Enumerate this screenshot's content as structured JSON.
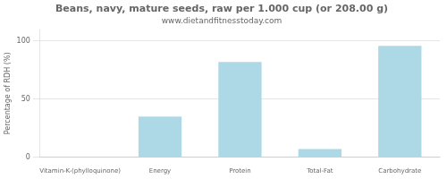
{
  "chart_data": {
    "type": "bar",
    "title": "Beans, navy, mature seeds, raw per 1.000 cup (or 208.00 g)",
    "subtitle": "www.dietandfitnesstoday.com",
    "categories": [
      "Vitamin-K-(phylloquinone)",
      "Energy",
      "Protein",
      "Total-Fat",
      "Carbohydrate"
    ],
    "values": [
      0,
      35,
      82,
      7,
      96
    ],
    "color": "#add8e6",
    "ylabel": "Percentage of RDH (%)",
    "ylim": [
      0,
      110
    ],
    "yticks": [
      0,
      50,
      100
    ],
    "grid": true
  }
}
